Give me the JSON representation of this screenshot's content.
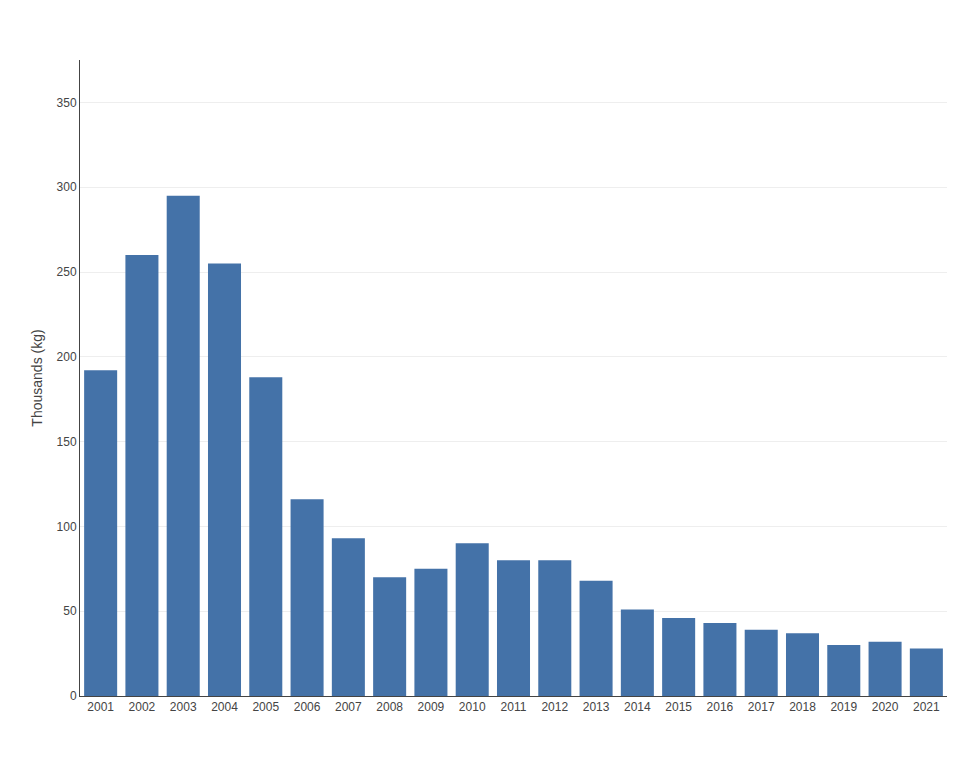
{
  "chart_data": {
    "type": "bar",
    "ylabel": "Thousands (kg)",
    "categories": [
      "2001",
      "2002",
      "2003",
      "2004",
      "2005",
      "2006",
      "2007",
      "2008",
      "2009",
      "2010",
      "2011",
      "2012",
      "2013",
      "2014",
      "2015",
      "2016",
      "2017",
      "2018",
      "2019",
      "2020",
      "2021"
    ],
    "values": [
      192,
      260,
      295,
      255,
      188,
      116,
      93,
      70,
      75,
      90,
      80,
      80,
      68,
      51,
      46,
      43,
      39,
      37,
      30,
      32,
      28
    ],
    "color": "#4472a8",
    "ylim": [
      0,
      375
    ],
    "yticks": [
      0,
      50,
      100,
      150,
      200,
      250,
      300,
      350
    ],
    "grid": true
  }
}
